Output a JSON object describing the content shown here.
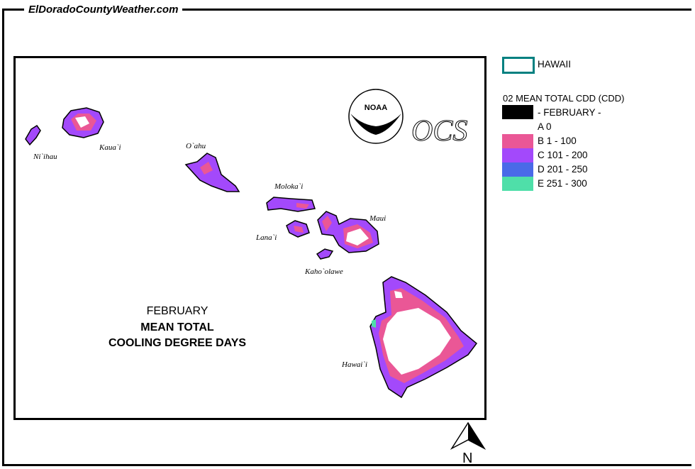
{
  "site_title": "ElDoradoCountyWeather.com",
  "map": {
    "title_line1": "FEBRUARY",
    "title_line2": "MEAN TOTAL",
    "title_line3": "COOLING DEGREE DAYS",
    "islands": [
      "Ni`ihau",
      "Kaua`i",
      "O`ahu",
      "Moloka`i",
      "Lana`i",
      "Maui",
      "Kaho`olawe",
      "Hawai`i"
    ],
    "logos": {
      "noaa": "NOAA",
      "ocs": "OCS"
    },
    "north_label": "N"
  },
  "legend": {
    "boundary_label": "HAWAII",
    "boundary_color": "#008080",
    "heading": "02 MEAN TOTAL CDD (CDD)",
    "period": "- FEBRUARY -",
    "classes": [
      {
        "label": "A 0",
        "color": "#ffffff"
      },
      {
        "label": "B 1 - 100",
        "color": "#ea5796"
      },
      {
        "label": "C 101 - 200",
        "color": "#a349fb"
      },
      {
        "label": "D 201 - 250",
        "color": "#4a6ae8"
      },
      {
        "label": "E 251 - 300",
        "color": "#4fdfa9"
      }
    ]
  }
}
